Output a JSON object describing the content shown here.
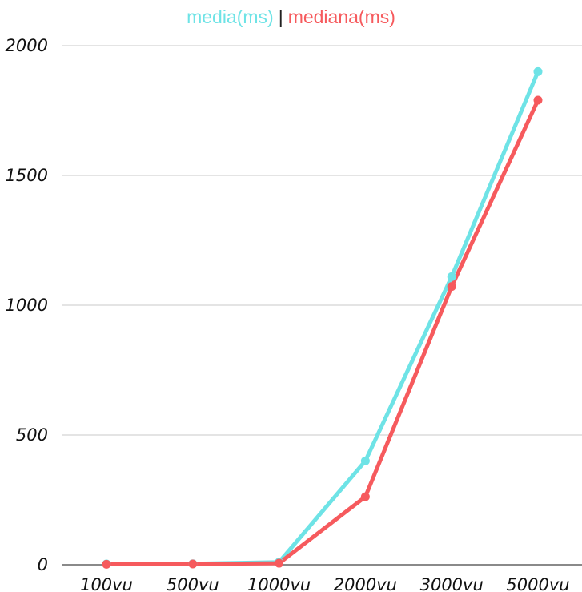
{
  "chart_data": {
    "type": "line",
    "categories": [
      "100vu",
      "500vu",
      "1000vu",
      "2000vu",
      "3000vu",
      "5000vu"
    ],
    "series": [
      {
        "name": "media(ms)",
        "color": "#6ee3e6",
        "values": [
          3,
          4,
          10,
          400,
          1110,
          1900
        ]
      },
      {
        "name": "mediana(ms)",
        "color": "#f65a5d",
        "values": [
          2,
          3,
          6,
          262,
          1072,
          1790
        ]
      }
    ],
    "yticks": [
      0,
      500,
      1000,
      1500,
      2000
    ],
    "ylim": [
      0,
      2000
    ],
    "grid": true,
    "legend_position": "top-center",
    "legend_separator": "|",
    "title": "",
    "xlabel": "",
    "ylabel": ""
  }
}
